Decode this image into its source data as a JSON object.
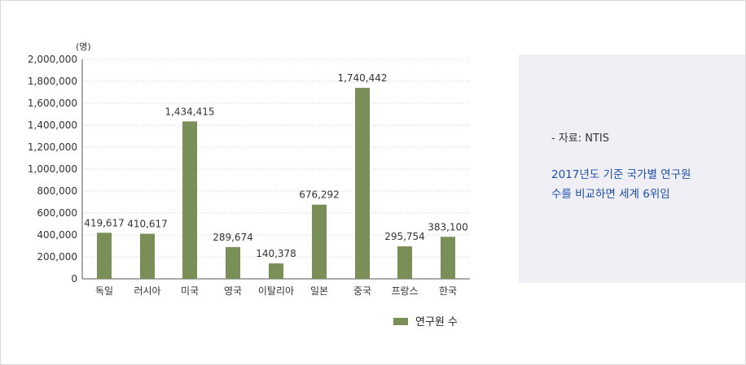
{
  "chart_data": {
    "type": "bar",
    "unit_label": "(명)",
    "categories": [
      "독일",
      "러시아",
      "미국",
      "영국",
      "이탈리아",
      "일본",
      "중국",
      "프랑스",
      "한국"
    ],
    "series": [
      {
        "name": "연구원 수",
        "values": [
          419617,
          410617,
          1434415,
          289674,
          140378,
          676292,
          1740442,
          295754,
          383100
        ],
        "value_labels": [
          "419,617",
          "410,617",
          "1,434,415",
          "289,674",
          "140,378",
          "676,292",
          "1,740,442",
          "295,754",
          "383,100"
        ],
        "color": "#7a8f57"
      }
    ],
    "ylim": [
      0,
      2000000
    ],
    "yticks": [
      0,
      200000,
      400000,
      600000,
      800000,
      1000000,
      1200000,
      1400000,
      1600000,
      1800000,
      2000000
    ],
    "ytick_labels": [
      "0",
      "200,000",
      "400,000",
      "600,000",
      "800,000",
      "1,000,000",
      "1,200,000",
      "1,400,000",
      "1,600,000",
      "1,800,000",
      "2,000,000"
    ],
    "grid": true,
    "legend_position": "bottom-right"
  },
  "side_note": {
    "source": "- 자료: NTIS",
    "note_line1": "2017년도 기준 국가별 연구원",
    "note_line2": "수를 비교하면 세계 6위임"
  },
  "colors": {
    "bar": "#7a8f57",
    "note_text": "#1e4fa8",
    "panel_bg": "#efeff5"
  }
}
